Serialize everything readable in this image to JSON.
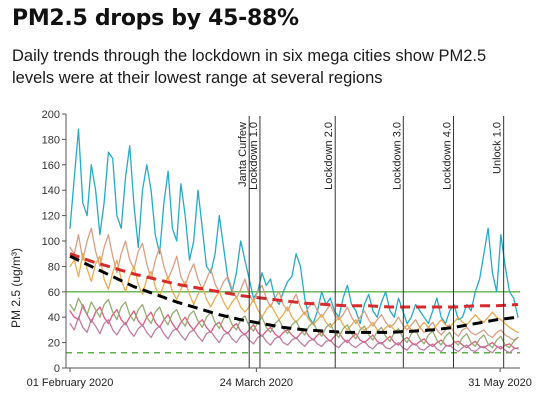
{
  "chart_data": {
    "type": "line",
    "title": "PM2.5 drops by 45-88%",
    "subtitle": "Daily trends through the lockdown in six mega cities show PM2.5 levels were at their lowest range at several regions",
    "ylabel": "PM 2.5 (ug/m³)",
    "xlabel": "",
    "ylim": [
      0,
      200
    ],
    "yticks": [
      0,
      20,
      40,
      60,
      80,
      100,
      120,
      140,
      160,
      180,
      200
    ],
    "x_tick_labels": [
      "01 February 2020",
      "24 March 2020",
      "31 May 2020"
    ],
    "date_range": [
      "2020-02-01",
      "2020-06-05"
    ],
    "grid": false,
    "reference_lines": [
      {
        "value": 60,
        "color": "#5fb04a",
        "style": "solid"
      },
      {
        "value": 12,
        "color": "#5fb04a",
        "style": "dashed"
      }
    ],
    "phase_markers": [
      {
        "label": "Janta Curfew",
        "date": "2020-03-22"
      },
      {
        "label": "Lockdown 1.0",
        "date": "2020-03-25"
      },
      {
        "label": "Lockdown 2.0",
        "date": "2020-04-15"
      },
      {
        "label": "Lockdown 3.0",
        "date": "2020-05-04"
      },
      {
        "label": "Lockdown 4.0",
        "date": "2020-05-18"
      },
      {
        "label": "Unlock 1.0",
        "date": "2020-06-01"
      }
    ],
    "series": [
      {
        "color": "#1aa5c4",
        "style": "line",
        "values": [
          110,
          150,
          188,
          130,
          120,
          160,
          140,
          105,
          130,
          170,
          165,
          120,
          110,
          150,
          175,
          128,
          95,
          140,
          160,
          140,
          105,
          90,
          130,
          155,
          110,
          100,
          145,
          120,
          85,
          100,
          140,
          110,
          80,
          75,
          90,
          120,
          95,
          70,
          60,
          75,
          100,
          85,
          70,
          55,
          60,
          75,
          65,
          70,
          55,
          50,
          60,
          68,
          72,
          90,
          80,
          55,
          40,
          35,
          45,
          60,
          50,
          55,
          45,
          40,
          55,
          65,
          50,
          45,
          35,
          50,
          58,
          45,
          40,
          52,
          60,
          45,
          40,
          55,
          45,
          35,
          40,
          50,
          45,
          40,
          35,
          45,
          55,
          40,
          35,
          45,
          50,
          38,
          40,
          50,
          45,
          60,
          70,
          90,
          110,
          75,
          60,
          105,
          80,
          60,
          55,
          40
        ]
      },
      {
        "color": "#d79a7e",
        "style": "line",
        "values": [
          95,
          90,
          105,
          85,
          100,
          110,
          92,
          80,
          95,
          105,
          88,
          75,
          90,
          100,
          85,
          78,
          92,
          98,
          82,
          70,
          85,
          95,
          80,
          70,
          78,
          88,
          72,
          65,
          75,
          82,
          70,
          62,
          70,
          78,
          66,
          60,
          68,
          72,
          62,
          55,
          62,
          70,
          58,
          52,
          60,
          65,
          55,
          48,
          55,
          60,
          50,
          45,
          52,
          58,
          48,
          42,
          48,
          52,
          45,
          40,
          45,
          50,
          42,
          38,
          42,
          48,
          40,
          35,
          40,
          45,
          38,
          33,
          38,
          42,
          36,
          32,
          35,
          40,
          34,
          30,
          34,
          38,
          32,
          28,
          32,
          36,
          30,
          26,
          30,
          34,
          28,
          25,
          30,
          32,
          28,
          26,
          28,
          30,
          26,
          24,
          28,
          30,
          26,
          24,
          22,
          24
        ]
      },
      {
        "color": "#e8a94a",
        "style": "line",
        "values": [
          80,
          85,
          72,
          90,
          78,
          68,
          82,
          88,
          70,
          62,
          75,
          85,
          70,
          60,
          72,
          80,
          66,
          58,
          70,
          76,
          64,
          56,
          66,
          72,
          60,
          54,
          62,
          68,
          58,
          50,
          58,
          64,
          54,
          48,
          55,
          60,
          52,
          46,
          52,
          56,
          48,
          44,
          48,
          54,
          46,
          40,
          46,
          50,
          44,
          38,
          42,
          48,
          40,
          36,
          40,
          44,
          38,
          34,
          38,
          42,
          36,
          32,
          36,
          40,
          34,
          30,
          34,
          38,
          32,
          30,
          32,
          36,
          30,
          28,
          32,
          34,
          30,
          28,
          30,
          34,
          30,
          28,
          32,
          36,
          32,
          30,
          34,
          38,
          34,
          32,
          36,
          40,
          36,
          34,
          38,
          42,
          38,
          36,
          40,
          44,
          40,
          38,
          35,
          32,
          30,
          28
        ]
      },
      {
        "color": "#e0507a",
        "style": "line",
        "values": [
          45,
          40,
          38,
          50,
          42,
          36,
          44,
          48,
          40,
          35,
          42,
          46,
          38,
          34,
          40,
          45,
          37,
          33,
          40,
          44,
          36,
          32,
          38,
          42,
          35,
          30,
          36,
          40,
          34,
          30,
          35,
          38,
          32,
          28,
          34,
          36,
          30,
          27,
          32,
          35,
          29,
          26,
          30,
          34,
          28,
          25,
          29,
          32,
          27,
          24,
          28,
          30,
          26,
          23,
          27,
          30,
          25,
          22,
          26,
          28,
          24,
          21,
          25,
          28,
          23,
          20,
          24,
          27,
          22,
          20,
          23,
          26,
          21,
          19,
          22,
          25,
          20,
          18,
          22,
          24,
          20,
          18,
          21,
          23,
          19,
          17,
          20,
          22,
          18,
          17,
          20,
          21,
          18,
          16,
          19,
          21,
          17,
          16,
          18,
          20,
          17,
          15,
          18,
          19,
          16,
          15
        ]
      },
      {
        "color": "#b9799e",
        "style": "line",
        "values": [
          35,
          30,
          40,
          32,
          28,
          38,
          33,
          27,
          35,
          38,
          30,
          26,
          32,
          36,
          29,
          25,
          31,
          34,
          28,
          24,
          30,
          33,
          27,
          23,
          29,
          31,
          26,
          22,
          28,
          30,
          25,
          21,
          27,
          29,
          24,
          20,
          26,
          28,
          23,
          20,
          25,
          27,
          22,
          19,
          24,
          26,
          21,
          18,
          23,
          25,
          20,
          18,
          22,
          24,
          20,
          17,
          21,
          23,
          19,
          17,
          21,
          22,
          18,
          16,
          20,
          22,
          18,
          16,
          19,
          21,
          17,
          15,
          19,
          20,
          16,
          15,
          18,
          20,
          16,
          14,
          18,
          19,
          15,
          14,
          17,
          19,
          15,
          13,
          17,
          18,
          15,
          13,
          16,
          18,
          14,
          13,
          16,
          17,
          14,
          12,
          16,
          17,
          14,
          12,
          15,
          16
        ]
      },
      {
        "color": "#8fa86a",
        "style": "line",
        "values": [
          50,
          45,
          55,
          48,
          42,
          52,
          46,
          40,
          50,
          54,
          44,
          38,
          48,
          52,
          42,
          37,
          46,
          50,
          40,
          35,
          44,
          48,
          39,
          34,
          43,
          46,
          38,
          33,
          42,
          45,
          37,
          32,
          40,
          44,
          36,
          31,
          39,
          42,
          34,
          30,
          38,
          41,
          33,
          29,
          36,
          40,
          32,
          28,
          35,
          38,
          31,
          27,
          34,
          37,
          30,
          26,
          33,
          36,
          29,
          25,
          32,
          35,
          28,
          24,
          31,
          34,
          27,
          23,
          30,
          33,
          26,
          22,
          29,
          32,
          25,
          21,
          28,
          31,
          24,
          20,
          27,
          30,
          23,
          19,
          26,
          29,
          22,
          18,
          25,
          28,
          21,
          18,
          24,
          27,
          20,
          17,
          23,
          26,
          19,
          16,
          22,
          25,
          18,
          16,
          21,
          24
        ]
      },
      {
        "color": "#d72b2b",
        "style": "dashed",
        "values": [
          90,
          84,
          79,
          74,
          70,
          66,
          63,
          60,
          57,
          55,
          53,
          51,
          50,
          49,
          49,
          48,
          48,
          48,
          48,
          49,
          49,
          50
        ]
      },
      {
        "color": "#000000",
        "style": "dashed",
        "values": [
          88,
          80,
          72,
          64,
          58,
          52,
          47,
          42,
          38,
          35,
          32,
          30,
          29,
          28,
          28,
          28,
          29,
          30,
          32,
          35,
          38,
          40
        ]
      }
    ]
  }
}
